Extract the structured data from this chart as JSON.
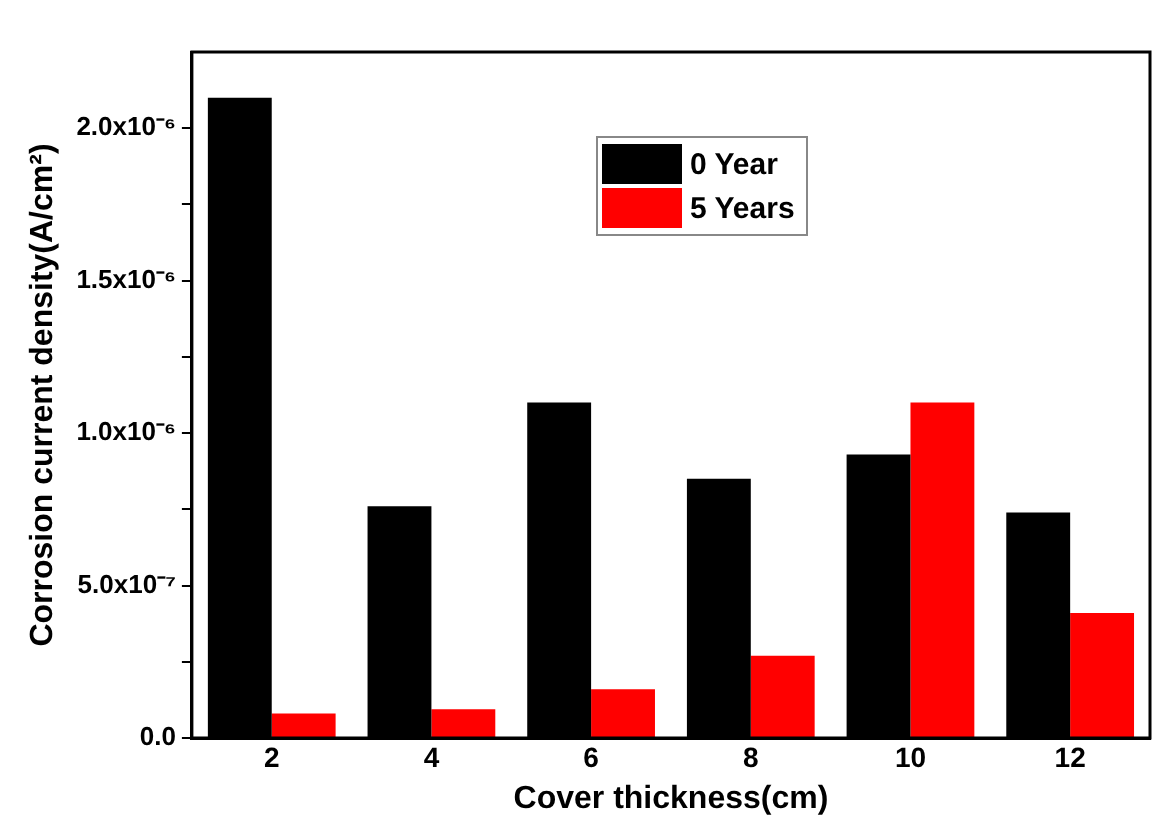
{
  "chart_data": {
    "type": "bar",
    "xlabel": "Cover thickness(cm)",
    "ylabel": "Corrosion current density(A/cm²)",
    "categories": [
      "2",
      "4",
      "6",
      "8",
      "10",
      "12"
    ],
    "series": [
      {
        "name": "0 Year",
        "color": "#000000",
        "values": [
          2.1e-06,
          7.6e-07,
          1.1e-06,
          8.5e-07,
          9.3e-07,
          7.4e-07
        ]
      },
      {
        "name": "5 Years",
        "color": "#ff0000",
        "values": [
          8e-08,
          9.4e-08,
          1.6e-07,
          2.7e-07,
          1.1e-06,
          4.1e-07
        ]
      }
    ],
    "ylim": [
      0,
      2.25e-06
    ],
    "yticks": [
      {
        "value": 0,
        "label": "0.0"
      },
      {
        "value": 2.5e-07,
        "label": null
      },
      {
        "value": 5e-07,
        "label": "5.0x10⁻⁷"
      },
      {
        "value": 7.5e-07,
        "label": null
      },
      {
        "value": 1e-06,
        "label": "1.0x10⁻⁶"
      },
      {
        "value": 1.25e-06,
        "label": null
      },
      {
        "value": 1.5e-06,
        "label": "1.5x10⁻⁶"
      },
      {
        "value": 1.75e-06,
        "label": null
      },
      {
        "value": 2e-06,
        "label": "2.0x10⁻⁶"
      }
    ],
    "grid": false,
    "legend": "top right"
  }
}
